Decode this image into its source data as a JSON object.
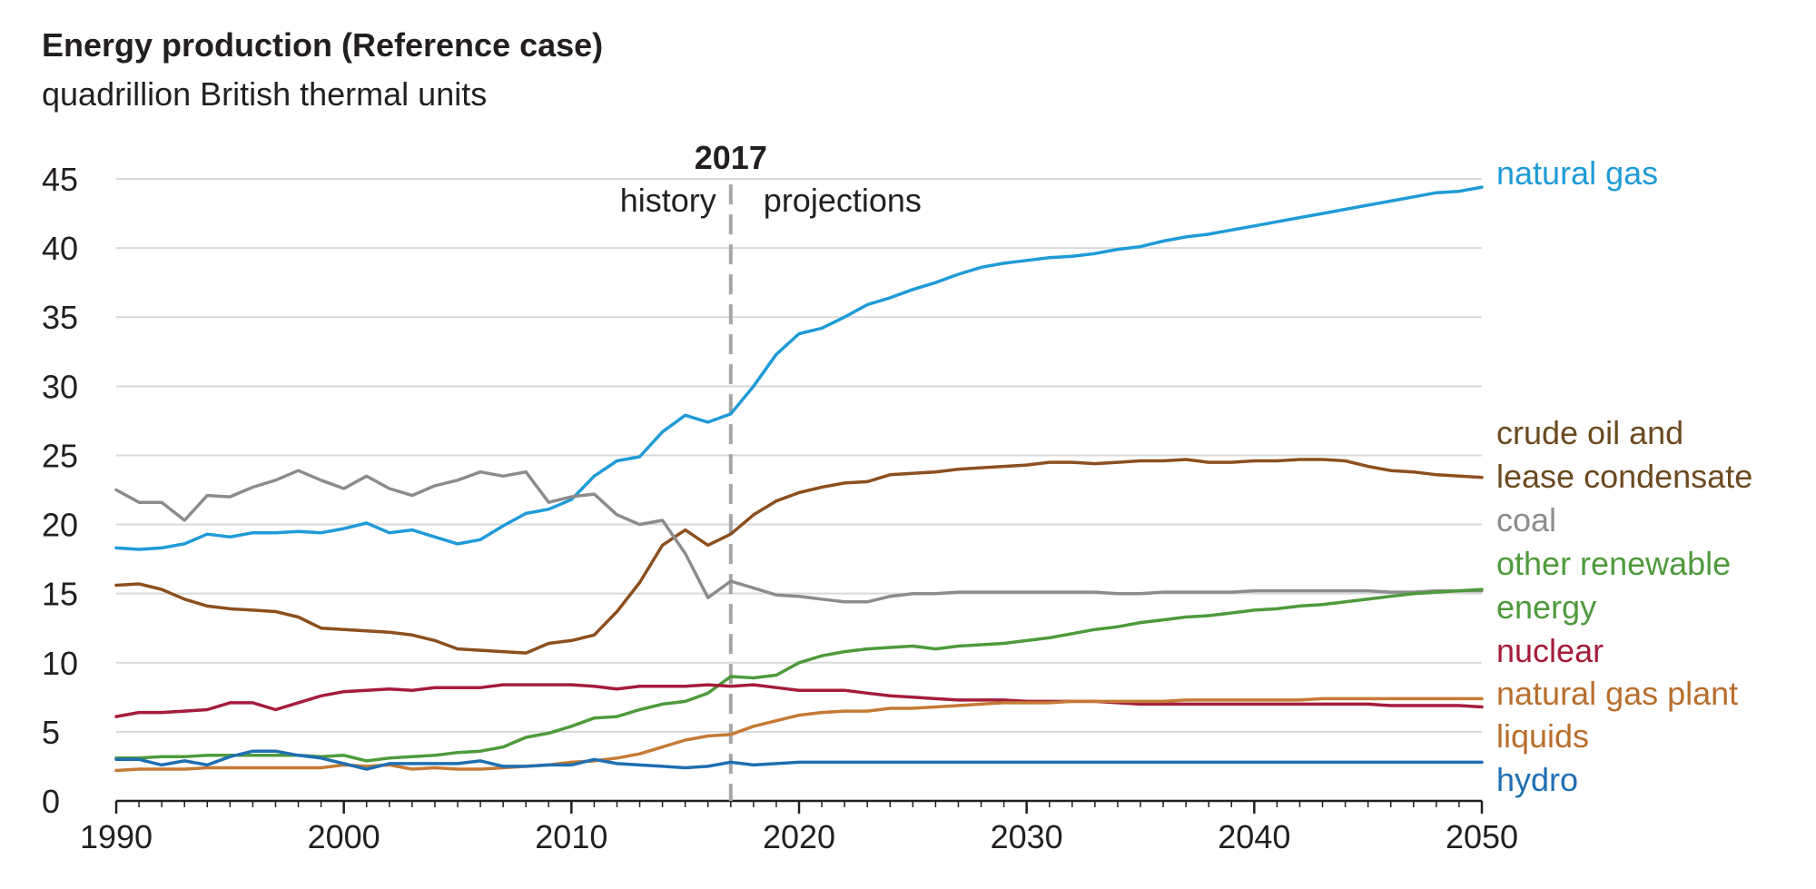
{
  "chart_data": {
    "type": "line",
    "title": "Energy production (Reference case)",
    "subtitle": "quadrillion British thermal units",
    "xlabel": "",
    "ylabel": "",
    "xlim": [
      1990,
      2050
    ],
    "ylim": [
      0,
      45
    ],
    "x_ticks": [
      1990,
      2000,
      2010,
      2020,
      2030,
      2040,
      2050
    ],
    "y_ticks": [
      0,
      5,
      10,
      15,
      20,
      25,
      30,
      35,
      40,
      45
    ],
    "grid": "horizontal",
    "legend": "right-edge labels",
    "divider": {
      "year": 2017,
      "label": "2017",
      "left_text": "history",
      "right_text": "projections"
    },
    "x": [
      1990,
      1991,
      1992,
      1993,
      1994,
      1995,
      1996,
      1997,
      1998,
      1999,
      2000,
      2001,
      2002,
      2003,
      2004,
      2005,
      2006,
      2007,
      2008,
      2009,
      2010,
      2011,
      2012,
      2013,
      2014,
      2015,
      2016,
      2017,
      2018,
      2019,
      2020,
      2021,
      2022,
      2023,
      2024,
      2025,
      2026,
      2027,
      2028,
      2029,
      2030,
      2031,
      2032,
      2033,
      2034,
      2035,
      2036,
      2037,
      2038,
      2039,
      2040,
      2041,
      2042,
      2043,
      2044,
      2045,
      2046,
      2047,
      2048,
      2049,
      2050
    ],
    "series": [
      {
        "name": "natural gas",
        "label_lines": [
          "natural gas"
        ],
        "color": "#1f9bd7",
        "values": [
          18.3,
          18.2,
          18.3,
          18.6,
          19.3,
          19.1,
          19.4,
          19.4,
          19.5,
          19.4,
          19.7,
          20.1,
          19.4,
          19.6,
          19.1,
          18.6,
          18.9,
          19.9,
          20.8,
          21.1,
          21.8,
          23.5,
          24.6,
          24.9,
          26.7,
          27.9,
          27.4,
          28.0,
          30.0,
          32.3,
          33.8,
          34.2,
          35.0,
          35.9,
          36.4,
          37.0,
          37.5,
          38.1,
          38.6,
          38.9,
          39.1,
          39.3,
          39.4,
          39.6,
          39.9,
          40.1,
          40.5,
          40.8,
          41.0,
          41.3,
          41.6,
          41.9,
          42.2,
          42.5,
          42.8,
          43.1,
          43.4,
          43.7,
          44.0,
          44.1,
          44.4
        ]
      },
      {
        "name": "crude oil and lease condensate",
        "label_lines": [
          "crude oil and",
          "lease condensate"
        ],
        "color": "#8c4f1f",
        "values": [
          15.6,
          15.7,
          15.3,
          14.6,
          14.1,
          13.9,
          13.8,
          13.7,
          13.3,
          12.5,
          12.4,
          12.3,
          12.2,
          12.0,
          11.6,
          11.0,
          10.9,
          10.8,
          10.7,
          11.4,
          11.6,
          12.0,
          13.7,
          15.8,
          18.5,
          19.6,
          18.5,
          19.3,
          20.7,
          21.7,
          22.3,
          22.7,
          23.0,
          23.1,
          23.6,
          23.7,
          23.8,
          24.0,
          24.1,
          24.2,
          24.3,
          24.5,
          24.5,
          24.4,
          24.5,
          24.6,
          24.6,
          24.7,
          24.5,
          24.5,
          24.6,
          24.6,
          24.7,
          24.7,
          24.6,
          24.2,
          23.9,
          23.8,
          23.6,
          23.5,
          23.4
        ]
      },
      {
        "name": "coal",
        "label_lines": [
          "coal"
        ],
        "color": "#8c8c8c",
        "values": [
          22.5,
          21.6,
          21.6,
          20.3,
          22.1,
          22.0,
          22.7,
          23.2,
          23.9,
          23.2,
          22.6,
          23.5,
          22.6,
          22.1,
          22.8,
          23.2,
          23.8,
          23.5,
          23.8,
          21.6,
          22.0,
          22.2,
          20.7,
          20.0,
          20.3,
          17.9,
          14.7,
          15.9,
          15.4,
          14.9,
          14.8,
          14.6,
          14.4,
          14.4,
          14.8,
          15.0,
          15.0,
          15.1,
          15.1,
          15.1,
          15.1,
          15.1,
          15.1,
          15.1,
          15.0,
          15.0,
          15.1,
          15.1,
          15.1,
          15.1,
          15.2,
          15.2,
          15.2,
          15.2,
          15.2,
          15.2,
          15.1,
          15.1,
          15.2,
          15.2,
          15.2
        ]
      },
      {
        "name": "other renewable energy",
        "label_lines": [
          "other renewable",
          "energy"
        ],
        "color": "#4e9a3c",
        "values": [
          3.1,
          3.1,
          3.2,
          3.2,
          3.3,
          3.3,
          3.3,
          3.3,
          3.3,
          3.2,
          3.3,
          2.9,
          3.1,
          3.2,
          3.3,
          3.5,
          3.6,
          3.9,
          4.6,
          4.9,
          5.4,
          6.0,
          6.1,
          6.6,
          7.0,
          7.2,
          7.8,
          9.0,
          8.9,
          9.1,
          10.0,
          10.5,
          10.8,
          11.0,
          11.1,
          11.2,
          11.0,
          11.2,
          11.3,
          11.4,
          11.6,
          11.8,
          12.1,
          12.4,
          12.6,
          12.9,
          13.1,
          13.3,
          13.4,
          13.6,
          13.8,
          13.9,
          14.1,
          14.2,
          14.4,
          14.6,
          14.8,
          15.0,
          15.1,
          15.2,
          15.3
        ]
      },
      {
        "name": "nuclear",
        "label_lines": [
          "nuclear"
        ],
        "color": "#a51c3a",
        "values": [
          6.1,
          6.4,
          6.4,
          6.5,
          6.6,
          7.1,
          7.1,
          6.6,
          7.1,
          7.6,
          7.9,
          8.0,
          8.1,
          8.0,
          8.2,
          8.2,
          8.2,
          8.4,
          8.4,
          8.4,
          8.4,
          8.3,
          8.1,
          8.3,
          8.3,
          8.3,
          8.4,
          8.3,
          8.4,
          8.2,
          8.0,
          8.0,
          8.0,
          7.8,
          7.6,
          7.5,
          7.4,
          7.3,
          7.3,
          7.3,
          7.2,
          7.2,
          7.2,
          7.2,
          7.1,
          7.0,
          7.0,
          7.0,
          7.0,
          7.0,
          7.0,
          7.0,
          7.0,
          7.0,
          7.0,
          7.0,
          6.9,
          6.9,
          6.9,
          6.9,
          6.8
        ]
      },
      {
        "name": "natural gas plant liquids",
        "label_lines": [
          "natural gas plant",
          "liquids"
        ],
        "color": "#c57a34",
        "values": [
          2.2,
          2.3,
          2.3,
          2.3,
          2.4,
          2.4,
          2.4,
          2.4,
          2.4,
          2.4,
          2.6,
          2.5,
          2.6,
          2.3,
          2.4,
          2.3,
          2.3,
          2.4,
          2.5,
          2.6,
          2.8,
          2.9,
          3.1,
          3.4,
          3.9,
          4.4,
          4.7,
          4.8,
          5.4,
          5.8,
          6.2,
          6.4,
          6.5,
          6.5,
          6.7,
          6.7,
          6.8,
          6.9,
          7.0,
          7.1,
          7.1,
          7.1,
          7.2,
          7.2,
          7.2,
          7.2,
          7.2,
          7.3,
          7.3,
          7.3,
          7.3,
          7.3,
          7.3,
          7.4,
          7.4,
          7.4,
          7.4,
          7.4,
          7.4,
          7.4,
          7.4
        ]
      },
      {
        "name": "hydro",
        "label_lines": [
          "hydro"
        ],
        "color": "#1f6fb2",
        "values": [
          3.0,
          3.0,
          2.6,
          2.9,
          2.6,
          3.2,
          3.6,
          3.6,
          3.3,
          3.1,
          2.7,
          2.3,
          2.7,
          2.7,
          2.7,
          2.7,
          2.9,
          2.5,
          2.5,
          2.6,
          2.6,
          3.0,
          2.7,
          2.6,
          2.5,
          2.4,
          2.5,
          2.8,
          2.6,
          2.7,
          2.8,
          2.8,
          2.8,
          2.8,
          2.8,
          2.8,
          2.8,
          2.8,
          2.8,
          2.8,
          2.8,
          2.8,
          2.8,
          2.8,
          2.8,
          2.8,
          2.8,
          2.8,
          2.8,
          2.8,
          2.8,
          2.8,
          2.8,
          2.8,
          2.8,
          2.8,
          2.8,
          2.8,
          2.8,
          2.8,
          2.8
        ]
      }
    ]
  }
}
